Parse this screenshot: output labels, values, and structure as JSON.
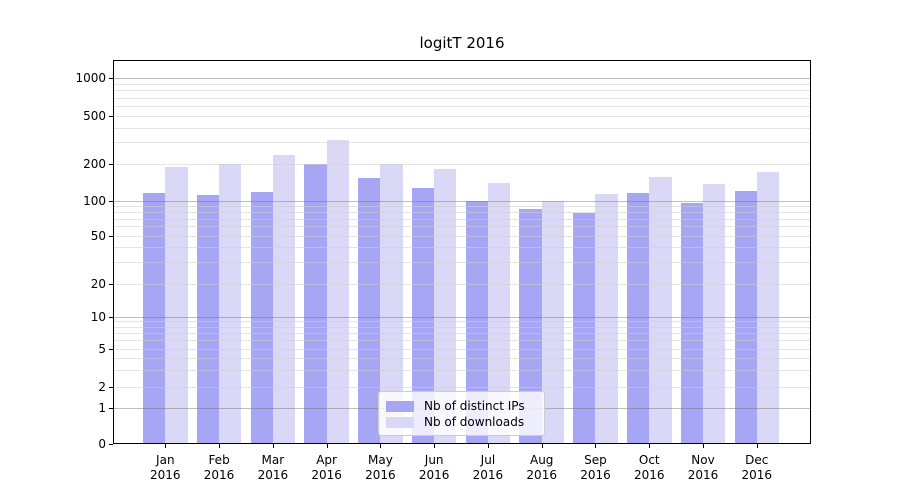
{
  "chart": {
    "title": "logitT 2016"
  },
  "chart_data": {
    "type": "bar",
    "title": "logitT 2016",
    "categories": [
      "Jan",
      "Feb",
      "Mar",
      "Apr",
      "May",
      "Jun",
      "Jul",
      "Aug",
      "Sep",
      "Oct",
      "Nov",
      "Dec"
    ],
    "category_year": "2016",
    "series": [
      {
        "name": "Nb of distinct IPs",
        "color": "#a6a6f4",
        "values": [
          115,
          112,
          118,
          200,
          152,
          127,
          100,
          85,
          79,
          116,
          97,
          121
        ]
      },
      {
        "name": "Nb of downloads",
        "color": "#d9d9f7",
        "values": [
          188,
          200,
          236,
          315,
          200,
          181,
          139,
          100,
          113,
          157,
          137,
          172
        ]
      }
    ],
    "xlabel": "",
    "ylabel": "",
    "yscale": "logit-like (logarithmic above 1, linear 0 to 1)",
    "yticks": [
      0,
      1,
      2,
      5,
      10,
      20,
      50,
      100,
      200,
      500,
      1000
    ],
    "ylim": [
      0,
      1000
    ],
    "grid": true,
    "legend_position": "lower center"
  }
}
